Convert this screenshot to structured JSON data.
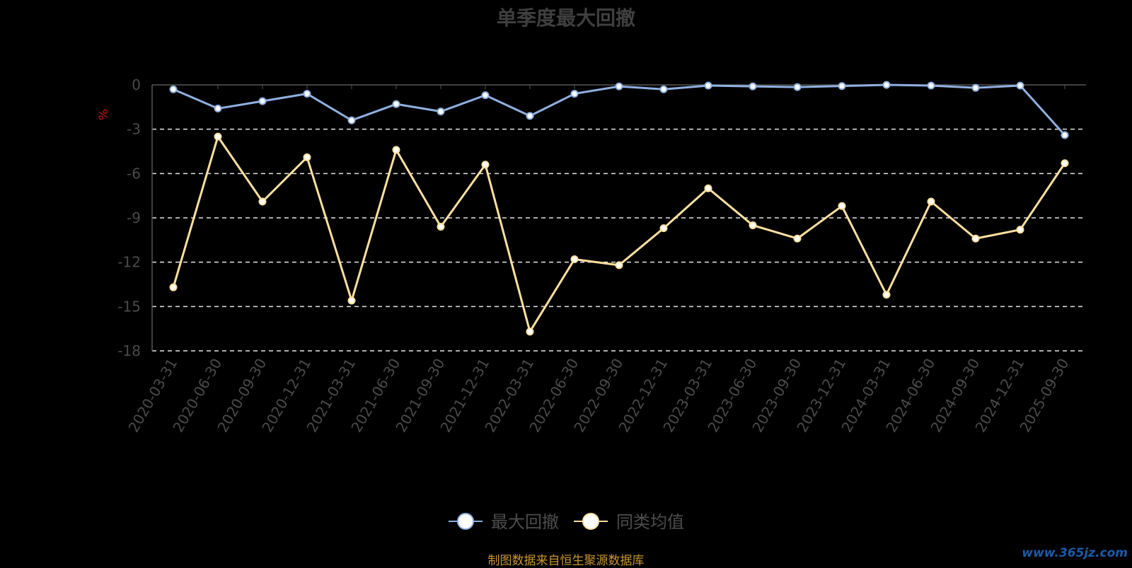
{
  "chart_data": {
    "type": "line",
    "title": "单季度最大回撤",
    "ylabel": "%",
    "ylim": [
      -18,
      0
    ],
    "yticks": [
      0,
      -3,
      -6,
      -9,
      -12,
      -15,
      -18
    ],
    "grid": true,
    "legend_position": "bottom-center",
    "categories": [
      "2020-03-31",
      "2020-06-30",
      "2020-09-30",
      "2020-12-31",
      "2021-03-31",
      "2021-06-30",
      "2021-09-30",
      "2021-12-31",
      "2022-03-31",
      "2022-06-30",
      "2022-09-30",
      "2022-12-31",
      "2023-03-31",
      "2023-06-30",
      "2023-09-30",
      "2023-12-31",
      "2024-03-31",
      "2024-06-30",
      "2024-09-30",
      "2024-12-31",
      "2025-09-30"
    ],
    "series": [
      {
        "name": "最大回撤",
        "color": "#8fb0e0",
        "values": [
          -0.3,
          -1.6,
          -1.1,
          -0.6,
          -2.4,
          -1.3,
          -1.8,
          -0.7,
          -2.1,
          -0.6,
          -0.1,
          -0.3,
          -0.05,
          -0.1,
          -0.15,
          -0.08,
          0.0,
          -0.05,
          -0.2,
          -0.05,
          -3.4
        ]
      },
      {
        "name": "同类均值",
        "color": "#ffe0a0",
        "values": [
          -13.7,
          -3.5,
          -7.9,
          -4.9,
          -14.6,
          -4.4,
          -9.6,
          -5.4,
          -16.7,
          -11.8,
          -12.2,
          -9.7,
          -7.0,
          -9.5,
          -10.4,
          -8.2,
          -14.2,
          -7.9,
          -10.4,
          -9.8,
          -5.3
        ]
      }
    ]
  },
  "footer": {
    "source": "制图数据来自恒生聚源数据库",
    "watermark": "www.365jz.com"
  }
}
